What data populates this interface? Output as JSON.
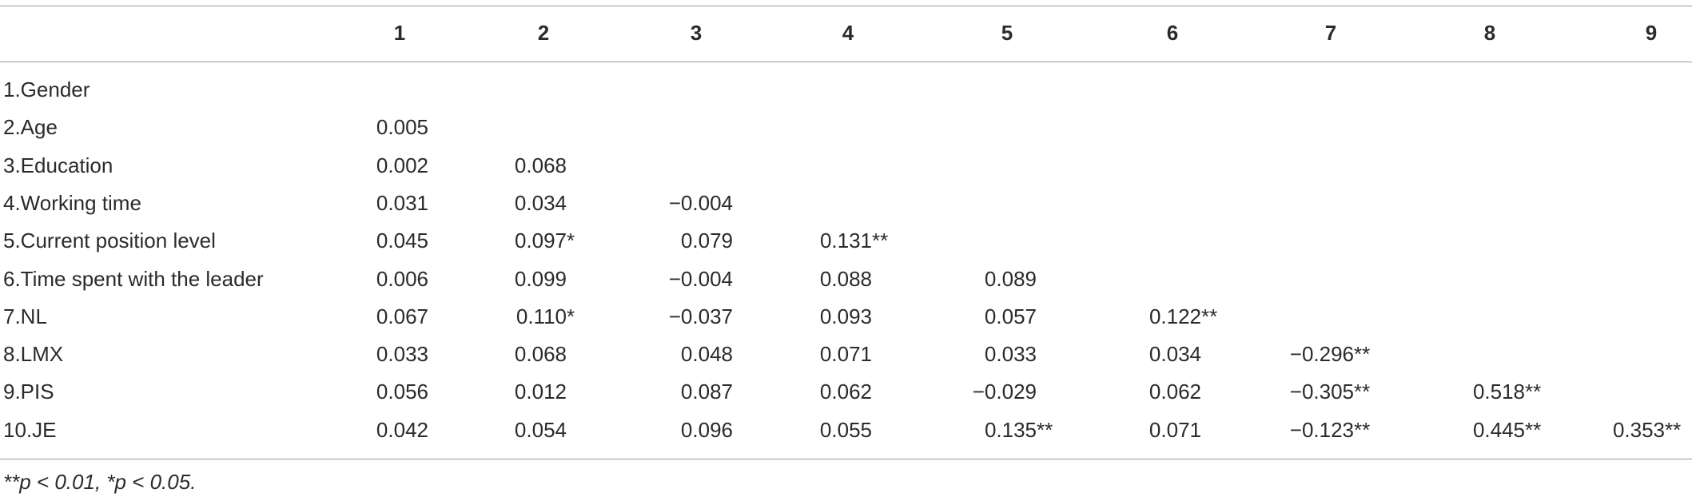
{
  "table": {
    "header": [
      "1",
      "2",
      "3",
      "4",
      "5",
      "6",
      "7",
      "8",
      "9"
    ],
    "rows": [
      {
        "label": "1.Gender",
        "cells": []
      },
      {
        "label": "2.Age",
        "cells": [
          "0.005"
        ]
      },
      {
        "label": "3.Education",
        "cells": [
          "0.002",
          "0.068"
        ]
      },
      {
        "label": "4.Working time",
        "cells": [
          "0.031",
          "0.034",
          "−0.004"
        ]
      },
      {
        "label": "5.Current position level",
        "cells": [
          "0.045",
          "0.097*",
          "0.079",
          "0.131**"
        ]
      },
      {
        "label": "6.Time spent with the leader",
        "cells": [
          "0.006",
          "0.099",
          "−0.004",
          "0.088",
          "0.089"
        ]
      },
      {
        "label": "7.NL",
        "cells": [
          "0.067",
          "0.110*",
          "−0.037",
          "0.093",
          "0.057",
          "0.122**"
        ]
      },
      {
        "label": "8.LMX",
        "cells": [
          "0.033",
          "0.068",
          "0.048",
          "0.071",
          "0.033",
          "0.034",
          "−0.296**"
        ]
      },
      {
        "label": "9.PIS",
        "cells": [
          "0.056",
          "0.012",
          "0.087",
          "0.062",
          "−0.029",
          "0.062",
          "−0.305**",
          "0.518**"
        ]
      },
      {
        "label": "10.JE",
        "cells": [
          "0.042",
          "0.054",
          "0.096",
          "0.055",
          "0.135**",
          "0.071",
          "−0.123**",
          "0.445**",
          "0.353**"
        ]
      }
    ],
    "note": "**p < 0.01, *p < 0.05."
  }
}
